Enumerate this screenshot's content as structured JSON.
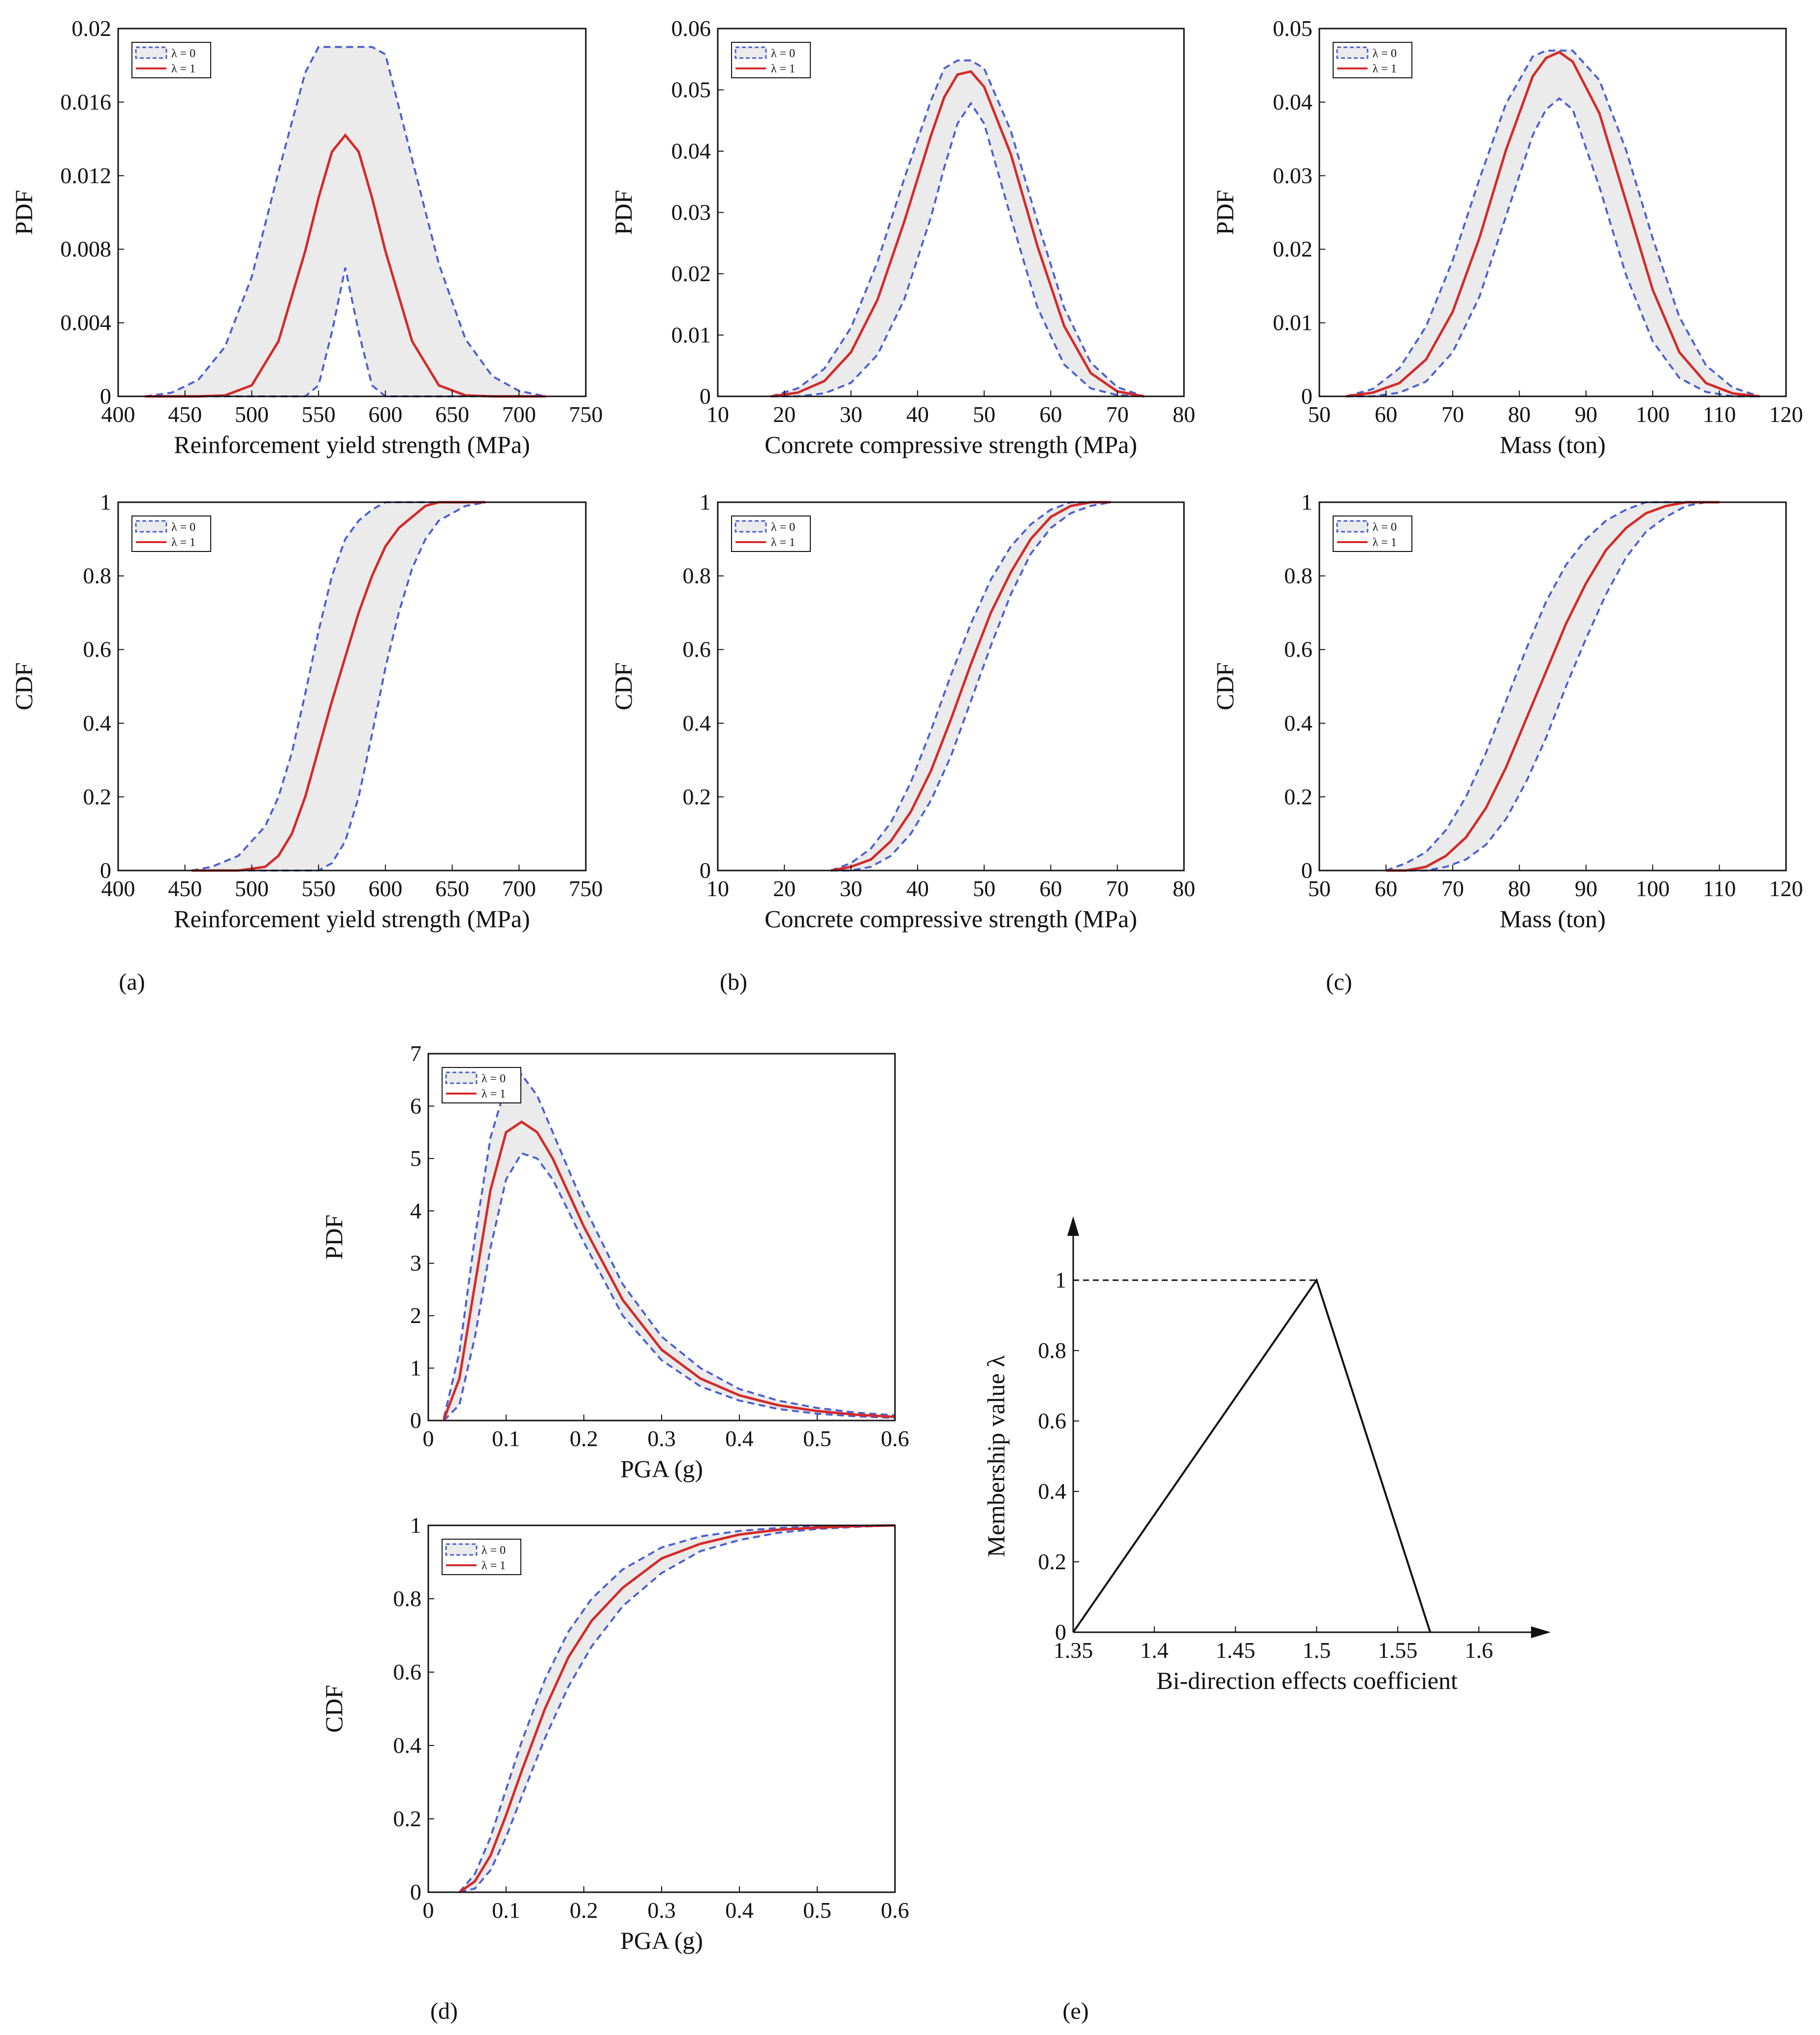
{
  "panel_labels": [
    "(a)",
    "(b)",
    "(c)",
    "(d)",
    "(e)"
  ],
  "colors": {
    "lambda0": "#4a5fd1",
    "lambda1": "#d42a2a",
    "band": "#ebebeb",
    "axis": "#111111"
  },
  "chart_data": [
    {
      "id": "a_pdf",
      "type": "area",
      "panel": "(a)",
      "xlabel": "Reinforcement yield strength (MPa)",
      "ylabel": "PDF",
      "xlim": [
        400,
        750
      ],
      "ylim": [
        0,
        0.02
      ],
      "xticks": [
        400,
        450,
        500,
        550,
        600,
        650,
        700,
        750
      ],
      "yticks": [
        0,
        0.004,
        0.008,
        0.012,
        0.016,
        0.02
      ],
      "ytick_labels": [
        "0",
        "0.004",
        "0.008",
        "0.012",
        "0.016",
        "0.02"
      ],
      "legend": [
        "λ = 0",
        "λ = 1"
      ],
      "x": [
        420,
        440,
        460,
        480,
        500,
        520,
        540,
        550,
        560,
        570,
        580,
        590,
        600,
        620,
        640,
        660,
        680,
        700,
        720
      ],
      "series": [
        {
          "name": "λ = 0",
          "role": "upper",
          "values": [
            0,
            0.0002,
            0.0009,
            0.0027,
            0.0065,
            0.0122,
            0.0176,
            0.019,
            0.019,
            0.019,
            0.019,
            0.019,
            0.0186,
            0.0129,
            0.0072,
            0.0031,
            0.0011,
            0.0003,
            0
          ]
        },
        {
          "name": "λ = 0",
          "role": "lower",
          "values": [
            0,
            0,
            0,
            0,
            0,
            0,
            0,
            0.0006,
            0.0035,
            0.007,
            0.0035,
            0.0006,
            0,
            0,
            0,
            0,
            0,
            0,
            0
          ]
        },
        {
          "name": "λ = 1",
          "values": [
            0,
            0,
            0,
            5e-05,
            0.0006,
            0.003,
            0.0079,
            0.0108,
            0.0133,
            0.0142,
            0.0133,
            0.0108,
            0.0079,
            0.003,
            0.0006,
            5e-05,
            0,
            0,
            0
          ]
        }
      ]
    },
    {
      "id": "b_pdf",
      "type": "area",
      "panel": "(b)",
      "xlabel": "Concrete compressive strength (MPa)",
      "ylabel": "PDF",
      "xlim": [
        10,
        80
      ],
      "ylim": [
        0,
        0.06
      ],
      "xticks": [
        10,
        20,
        30,
        40,
        50,
        60,
        70,
        80
      ],
      "yticks": [
        0,
        0.01,
        0.02,
        0.03,
        0.04,
        0.05,
        0.06
      ],
      "ytick_labels": [
        "0",
        "0.01",
        "0.02",
        "0.03",
        "0.04",
        "0.05",
        "0.06"
      ],
      "legend": [
        "λ = 0",
        "λ = 1"
      ],
      "x": [
        18,
        22,
        26,
        30,
        34,
        38,
        42,
        44,
        46,
        48,
        50,
        54,
        58,
        62,
        66,
        70,
        74
      ],
      "series": [
        {
          "name": "λ = 0",
          "role": "upper",
          "values": [
            0,
            0.0013,
            0.0045,
            0.0112,
            0.022,
            0.0355,
            0.0482,
            0.0535,
            0.0548,
            0.0548,
            0.0535,
            0.0433,
            0.0285,
            0.0145,
            0.0055,
            0.0015,
            0
          ]
        },
        {
          "name": "λ = 0",
          "role": "lower",
          "values": [
            0,
            0,
            0.0005,
            0.0022,
            0.0068,
            0.0158,
            0.0292,
            0.0373,
            0.0445,
            0.0478,
            0.0445,
            0.0292,
            0.0145,
            0.0052,
            0.0013,
            0.0002,
            0
          ]
        },
        {
          "name": "λ = 1",
          "values": [
            0,
            0.0006,
            0.0025,
            0.0072,
            0.0158,
            0.0285,
            0.0425,
            0.0488,
            0.0525,
            0.053,
            0.0505,
            0.0395,
            0.0245,
            0.0115,
            0.0038,
            0.0008,
            0
          ]
        }
      ]
    },
    {
      "id": "c_pdf",
      "type": "area",
      "panel": "(c)",
      "xlabel": "Mass (ton)",
      "ylabel": "PDF",
      "xlim": [
        50,
        120
      ],
      "ylim": [
        0,
        0.05
      ],
      "xticks": [
        50,
        60,
        70,
        80,
        90,
        100,
        110,
        120
      ],
      "yticks": [
        0,
        0.01,
        0.02,
        0.03,
        0.04,
        0.05
      ],
      "ytick_labels": [
        "0",
        "0.01",
        "0.02",
        "0.03",
        "0.04",
        "0.05"
      ],
      "legend": [
        "λ = 0",
        "λ = 1"
      ],
      "x": [
        54,
        58,
        62,
        66,
        70,
        74,
        78,
        82,
        84,
        86,
        88,
        92,
        96,
        100,
        104,
        108,
        112,
        116
      ],
      "series": [
        {
          "name": "λ = 0",
          "role": "upper",
          "values": [
            0,
            0.001,
            0.0038,
            0.0095,
            0.0185,
            0.0295,
            0.0398,
            0.0462,
            0.047,
            0.047,
            0.047,
            0.043,
            0.0335,
            0.0215,
            0.0108,
            0.0042,
            0.0012,
            0
          ]
        },
        {
          "name": "λ = 0",
          "role": "lower",
          "values": [
            0,
            0,
            0.0005,
            0.002,
            0.006,
            0.0135,
            0.0245,
            0.0355,
            0.039,
            0.0405,
            0.039,
            0.0285,
            0.0165,
            0.0075,
            0.0025,
            0.0006,
            0,
            0
          ]
        },
        {
          "name": "λ = 1",
          "values": [
            0,
            0.0005,
            0.0018,
            0.005,
            0.0115,
            0.0215,
            0.0335,
            0.0435,
            0.046,
            0.0468,
            0.0455,
            0.0385,
            0.0265,
            0.0145,
            0.006,
            0.0018,
            0.0004,
            0
          ]
        }
      ]
    },
    {
      "id": "a_cdf",
      "type": "area",
      "panel": "(a)",
      "xlabel": "Reinforcement yield strength (MPa)",
      "ylabel": "CDF",
      "xlim": [
        400,
        750
      ],
      "ylim": [
        0,
        1
      ],
      "xticks": [
        400,
        450,
        500,
        550,
        600,
        650,
        700,
        750
      ],
      "yticks": [
        0,
        0.2,
        0.4,
        0.6,
        0.8,
        1
      ],
      "ytick_labels": [
        "0",
        "0.2",
        "0.4",
        "0.6",
        "0.8",
        "1"
      ],
      "legend": [
        "λ = 0",
        "λ = 1"
      ],
      "x": [
        455,
        470,
        490,
        510,
        520,
        530,
        540,
        550,
        560,
        570,
        580,
        590,
        600,
        610,
        620,
        630,
        640,
        660,
        675
      ],
      "series": [
        {
          "name": "λ = 0",
          "role": "upper",
          "values": [
            0,
            0.01,
            0.04,
            0.12,
            0.2,
            0.32,
            0.48,
            0.65,
            0.8,
            0.9,
            0.95,
            0.98,
            1,
            1,
            1,
            1,
            1,
            1,
            1
          ]
        },
        {
          "name": "λ = 0",
          "role": "lower",
          "values": [
            0,
            0,
            0,
            0,
            0,
            0,
            0,
            0,
            0.02,
            0.08,
            0.2,
            0.37,
            0.55,
            0.7,
            0.82,
            0.9,
            0.95,
            0.99,
            1
          ]
        },
        {
          "name": "λ = 1",
          "values": [
            0,
            0,
            0,
            0.01,
            0.04,
            0.1,
            0.2,
            0.33,
            0.46,
            0.58,
            0.7,
            0.8,
            0.88,
            0.93,
            0.96,
            0.99,
            1,
            1,
            1
          ]
        }
      ]
    },
    {
      "id": "b_cdf",
      "type": "area",
      "panel": "(b)",
      "xlabel": "Concrete compressive strength (MPa)",
      "ylabel": "CDF",
      "xlim": [
        10,
        80
      ],
      "ylim": [
        0,
        1
      ],
      "xticks": [
        10,
        20,
        30,
        40,
        50,
        60,
        70,
        80
      ],
      "yticks": [
        0,
        0.2,
        0.4,
        0.6,
        0.8,
        1
      ],
      "ytick_labels": [
        "0",
        "0.2",
        "0.4",
        "0.6",
        "0.8",
        "1"
      ],
      "legend": [
        "λ = 0",
        "λ = 1"
      ],
      "x": [
        27,
        30,
        33,
        36,
        39,
        42,
        45,
        48,
        51,
        54,
        57,
        60,
        63,
        66,
        69
      ],
      "series": [
        {
          "name": "λ = 0",
          "role": "upper",
          "values": [
            0,
            0.02,
            0.06,
            0.13,
            0.24,
            0.38,
            0.53,
            0.67,
            0.79,
            0.88,
            0.94,
            0.98,
            1,
            1,
            1
          ]
        },
        {
          "name": "λ = 0",
          "role": "lower",
          "values": [
            0,
            0,
            0.01,
            0.04,
            0.1,
            0.19,
            0.31,
            0.46,
            0.61,
            0.75,
            0.86,
            0.93,
            0.97,
            0.99,
            1
          ]
        },
        {
          "name": "λ = 1",
          "values": [
            0,
            0.01,
            0.03,
            0.08,
            0.16,
            0.27,
            0.41,
            0.56,
            0.7,
            0.81,
            0.9,
            0.96,
            0.99,
            1,
            1
          ]
        }
      ]
    },
    {
      "id": "c_cdf",
      "type": "area",
      "panel": "(c)",
      "xlabel": "Mass (ton)",
      "ylabel": "CDF",
      "xlim": [
        50,
        120
      ],
      "ylim": [
        0,
        1
      ],
      "xticks": [
        50,
        60,
        70,
        80,
        90,
        100,
        110,
        120
      ],
      "yticks": [
        0,
        0.2,
        0.4,
        0.6,
        0.8,
        1
      ],
      "ytick_labels": [
        "0",
        "0.2",
        "0.4",
        "0.6",
        "0.8",
        "1"
      ],
      "legend": [
        "λ = 0",
        "λ = 1"
      ],
      "x": [
        60,
        63,
        66,
        69,
        72,
        75,
        78,
        81,
        84,
        87,
        90,
        93,
        96,
        99,
        102,
        105,
        108,
        110
      ],
      "series": [
        {
          "name": "λ = 0",
          "role": "upper",
          "values": [
            0,
            0.02,
            0.05,
            0.11,
            0.2,
            0.32,
            0.46,
            0.6,
            0.73,
            0.83,
            0.9,
            0.95,
            0.98,
            1,
            1,
            1,
            1,
            1
          ]
        },
        {
          "name": "λ = 0",
          "role": "lower",
          "values": [
            0,
            0,
            0,
            0.01,
            0.03,
            0.07,
            0.14,
            0.24,
            0.36,
            0.5,
            0.63,
            0.75,
            0.85,
            0.92,
            0.96,
            0.99,
            1,
            1
          ]
        },
        {
          "name": "λ = 1",
          "values": [
            0,
            0,
            0.01,
            0.04,
            0.09,
            0.17,
            0.28,
            0.41,
            0.54,
            0.67,
            0.78,
            0.87,
            0.93,
            0.97,
            0.99,
            1,
            1,
            1
          ]
        }
      ]
    },
    {
      "id": "d_pdf",
      "type": "area",
      "panel": "(d)",
      "xlabel": "PGA (g)",
      "ylabel": "PDF",
      "xlim": [
        0,
        0.6
      ],
      "ylim": [
        0,
        7
      ],
      "xticks": [
        0,
        0.1,
        0.2,
        0.3,
        0.4,
        0.5,
        0.6
      ],
      "yticks": [
        0,
        1,
        2,
        3,
        4,
        5,
        6,
        7
      ],
      "ytick_labels": [
        "0",
        "1",
        "2",
        "3",
        "4",
        "5",
        "6",
        "7"
      ],
      "legend": [
        "λ = 0",
        "λ = 1"
      ],
      "x": [
        0.02,
        0.04,
        0.06,
        0.08,
        0.1,
        0.12,
        0.14,
        0.16,
        0.2,
        0.25,
        0.3,
        0.35,
        0.4,
        0.45,
        0.5,
        0.55,
        0.6
      ],
      "series": [
        {
          "name": "λ = 0",
          "role": "upper",
          "values": [
            0.05,
            1.3,
            3.5,
            5.4,
            6.4,
            6.6,
            6.2,
            5.5,
            4.1,
            2.6,
            1.6,
            1.0,
            0.6,
            0.38,
            0.24,
            0.15,
            0.1
          ]
        },
        {
          "name": "λ = 0",
          "role": "lower",
          "values": [
            0,
            0.3,
            1.6,
            3.3,
            4.6,
            5.1,
            5.0,
            4.6,
            3.4,
            2.0,
            1.15,
            0.65,
            0.38,
            0.22,
            0.13,
            0.08,
            0.05
          ]
        },
        {
          "name": "λ = 1",
          "values": [
            0.02,
            0.8,
            2.6,
            4.4,
            5.5,
            5.7,
            5.5,
            5.0,
            3.7,
            2.3,
            1.35,
            0.8,
            0.48,
            0.29,
            0.18,
            0.11,
            0.07
          ]
        }
      ]
    },
    {
      "id": "d_cdf",
      "type": "area",
      "panel": "(d)",
      "xlabel": "PGA (g)",
      "ylabel": "CDF",
      "xlim": [
        0,
        0.6
      ],
      "ylim": [
        0,
        1
      ],
      "xticks": [
        0,
        0.1,
        0.2,
        0.3,
        0.4,
        0.5,
        0.6
      ],
      "yticks": [
        0,
        0.2,
        0.4,
        0.6,
        0.8,
        1
      ],
      "ytick_labels": [
        "0",
        "0.2",
        "0.4",
        "0.6",
        "0.8",
        "1"
      ],
      "legend": [
        "λ = 0",
        "λ = 1"
      ],
      "x": [
        0.04,
        0.06,
        0.08,
        0.1,
        0.12,
        0.15,
        0.18,
        0.21,
        0.25,
        0.3,
        0.35,
        0.4,
        0.45,
        0.5,
        0.55,
        0.6
      ],
      "series": [
        {
          "name": "λ = 0",
          "role": "upper",
          "values": [
            0,
            0.05,
            0.15,
            0.28,
            0.41,
            0.58,
            0.71,
            0.8,
            0.88,
            0.94,
            0.97,
            0.985,
            0.993,
            0.997,
            0.999,
            1
          ]
        },
        {
          "name": "λ = 0",
          "role": "lower",
          "values": [
            0,
            0.01,
            0.06,
            0.15,
            0.26,
            0.42,
            0.56,
            0.67,
            0.78,
            0.87,
            0.93,
            0.96,
            0.98,
            0.99,
            0.996,
            1
          ]
        },
        {
          "name": "λ = 1",
          "values": [
            0,
            0.03,
            0.1,
            0.21,
            0.33,
            0.5,
            0.64,
            0.74,
            0.83,
            0.91,
            0.95,
            0.975,
            0.988,
            0.994,
            0.998,
            1
          ]
        }
      ]
    },
    {
      "id": "e_membership",
      "type": "line",
      "panel": "(e)",
      "xlabel": "Bi-direction effects coefficient",
      "ylabel": "Membership value λ",
      "xlim": [
        1.35,
        1.62
      ],
      "ylim": [
        0,
        1
      ],
      "xticks": [
        1.35,
        1.4,
        1.45,
        1.5,
        1.55,
        1.6
      ],
      "yticks": [
        0,
        0.2,
        0.4,
        0.6,
        0.8,
        1
      ],
      "ytick_labels": [
        "0",
        "0.2",
        "0.4",
        "0.6",
        "0.8",
        "1"
      ],
      "x": [
        1.35,
        1.5,
        1.57
      ],
      "values": [
        0,
        1,
        0
      ],
      "reference_line": {
        "y": 1,
        "x_from": 1.35,
        "x_to": 1.5
      }
    }
  ]
}
